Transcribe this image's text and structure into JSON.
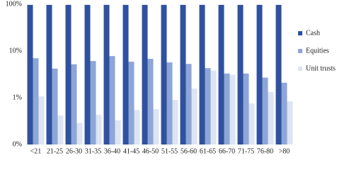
{
  "chart_data": {
    "type": "bar",
    "categories": [
      "<21",
      "21-25",
      "26-30",
      "31-35",
      "36-40",
      "41-45",
      "46-50",
      "51-55",
      "56-60",
      "61-65",
      "66-70",
      "71-75",
      "76-80",
      ">80"
    ],
    "series": [
      {
        "name": "Cash",
        "color": "#2f519f",
        "values": [
          97,
          97,
          97,
          97,
          97,
          97,
          97,
          97,
          97,
          97,
          97,
          97,
          97,
          97
        ]
      },
      {
        "name": "Equities",
        "color": "#8ea6d7",
        "values": [
          7.0,
          4.2,
          5.2,
          6.1,
          7.8,
          5.9,
          6.8,
          5.7,
          5.3,
          4.3,
          3.3,
          3.3,
          2.7,
          2.1
        ]
      },
      {
        "name": "Unit trusts",
        "color": "#dde4f2",
        "values": [
          1.07,
          0.42,
          0.29,
          0.43,
          0.33,
          0.55,
          0.57,
          0.9,
          1.57,
          3.8,
          3.1,
          0.76,
          1.32,
          0.84
        ]
      }
    ],
    "log_scale": true,
    "ylim": [
      0.1,
      100
    ],
    "yticks": [
      {
        "value": 0.1,
        "label": "0%"
      },
      {
        "value": 1,
        "label": "1%"
      },
      {
        "value": 10,
        "label": "10%"
      },
      {
        "value": 100,
        "label": "100%"
      }
    ],
    "legend": "right"
  }
}
